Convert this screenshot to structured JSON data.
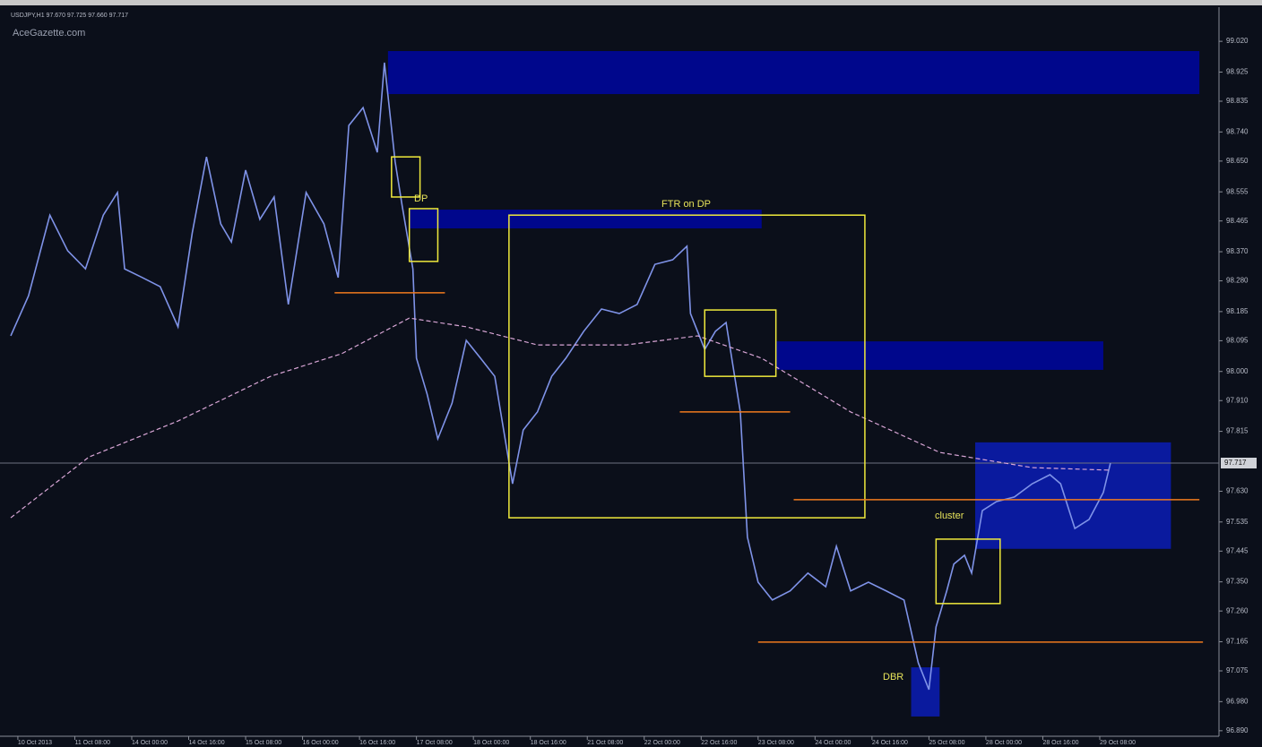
{
  "chart_data": {
    "type": "line",
    "header": "USDJPY,H1 97.670 97.725 97.660 97.717",
    "watermark": "AceGazette.com",
    "ylim": [
      96.873,
      99.12
    ],
    "yticks": [
      {
        "value": 99.02,
        "label": "99.020"
      },
      {
        "value": 98.925,
        "label": "98.925"
      },
      {
        "value": 98.835,
        "label": "98.835"
      },
      {
        "value": 98.74,
        "label": "98.740"
      },
      {
        "value": 98.65,
        "label": "98.650"
      },
      {
        "value": 98.555,
        "label": "98.555"
      },
      {
        "value": 98.465,
        "label": "98.465"
      },
      {
        "value": 98.37,
        "label": "98.370"
      },
      {
        "value": 98.28,
        "label": "98.280"
      },
      {
        "value": 98.185,
        "label": "98.185"
      },
      {
        "value": 98.095,
        "label": "98.095"
      },
      {
        "value": 98.0,
        "label": "98.000"
      },
      {
        "value": 97.91,
        "label": "97.910"
      },
      {
        "value": 97.815,
        "label": "97.815"
      },
      {
        "value": 97.63,
        "label": "97.630"
      },
      {
        "value": 97.535,
        "label": "97.535"
      },
      {
        "value": 97.445,
        "label": "97.445"
      },
      {
        "value": 97.35,
        "label": "97.350"
      },
      {
        "value": 97.26,
        "label": "97.260"
      },
      {
        "value": 97.165,
        "label": "97.165"
      },
      {
        "value": 97.075,
        "label": "97.075"
      },
      {
        "value": 96.98,
        "label": "96.980"
      },
      {
        "value": 96.89,
        "label": "96.890"
      }
    ],
    "xlim": [
      -2.5,
      337.5
    ],
    "xticks": [
      {
        "value": 0,
        "label": "10 Oct 2013"
      },
      {
        "value": 16,
        "label": "11 Oct 08:00"
      },
      {
        "value": 32,
        "label": "14 Oct 00:00"
      },
      {
        "value": 48,
        "label": "14 Oct 16:00"
      },
      {
        "value": 64,
        "label": "15 Oct 08:00"
      },
      {
        "value": 80,
        "label": "16 Oct 00:00"
      },
      {
        "value": 96,
        "label": "16 Oct 16:00"
      },
      {
        "value": 112,
        "label": "17 Oct 08:00"
      },
      {
        "value": 128,
        "label": "18 Oct 00:00"
      },
      {
        "value": 144,
        "label": "18 Oct 16:00"
      },
      {
        "value": 160,
        "label": "21 Oct 08:00"
      },
      {
        "value": 176,
        "label": "22 Oct 00:00"
      },
      {
        "value": 192,
        "label": "22 Oct 16:00"
      },
      {
        "value": 208,
        "label": "23 Oct 08:00"
      },
      {
        "value": 224,
        "label": "24 Oct 00:00"
      },
      {
        "value": 240,
        "label": "24 Oct 16:00"
      },
      {
        "value": 256,
        "label": "25 Oct 08:00"
      },
      {
        "value": 272,
        "label": "28 Oct 00:00"
      },
      {
        "value": 288,
        "label": "28 Oct 16:00"
      },
      {
        "value": 304,
        "label": "29 Oct 08:00"
      }
    ],
    "series": [
      {
        "color": "#7f93e8",
        "x": [
          -2,
          3,
          9,
          14,
          19,
          24,
          28,
          30,
          35,
          40,
          45,
          49,
          53,
          57,
          60,
          64,
          68,
          72,
          76,
          81,
          86,
          90,
          93,
          97,
          101,
          103,
          106,
          108,
          111,
          112,
          115,
          118,
          122,
          126,
          130,
          134,
          139,
          142,
          146,
          150,
          154,
          159,
          164,
          169,
          174,
          179,
          184,
          188,
          189,
          193,
          196,
          199,
          201,
          203,
          205,
          208,
          212,
          217,
          222,
          227,
          230,
          234,
          239,
          244,
          249,
          253,
          256,
          258,
          261,
          263,
          266,
          268,
          271,
          275,
          280,
          285,
          290,
          293,
          297,
          301,
          305,
          307
        ],
        "values": [
          98.11,
          98.234,
          98.483,
          98.373,
          98.317,
          98.483,
          98.553,
          98.317,
          98.29,
          98.262,
          98.138,
          98.428,
          98.663,
          98.456,
          98.4,
          98.622,
          98.47,
          98.539,
          98.207,
          98.553,
          98.456,
          98.29,
          98.76,
          98.815,
          98.677,
          98.954,
          98.649,
          98.511,
          98.317,
          98.041,
          97.93,
          97.792,
          97.902,
          98.096,
          98.041,
          97.985,
          97.653,
          97.819,
          97.875,
          97.985,
          98.041,
          98.124,
          98.193,
          98.179,
          98.207,
          98.331,
          98.345,
          98.387,
          98.179,
          98.068,
          98.124,
          98.151,
          98.013,
          97.875,
          97.488,
          97.349,
          97.294,
          97.322,
          97.377,
          97.335,
          97.46,
          97.322,
          97.349,
          97.322,
          97.294,
          97.1,
          97.017,
          97.211,
          97.322,
          97.405,
          97.432,
          97.377,
          97.57,
          97.598,
          97.612,
          97.653,
          97.681,
          97.653,
          97.515,
          97.543,
          97.626,
          97.717
        ]
      },
      {
        "color": "#d9a6d6",
        "dashed": true,
        "x": [
          -2,
          20,
          45,
          71,
          91,
          110,
          126,
          146,
          171,
          191,
          209,
          234,
          259,
          285,
          307
        ],
        "values": [
          97.548,
          97.736,
          97.847,
          97.985,
          98.055,
          98.165,
          98.138,
          98.082,
          98.082,
          98.11,
          98.041,
          97.875,
          97.75,
          97.703,
          97.695
        ]
      }
    ],
    "current_price": 97.717,
    "zones": [
      {
        "x": [
          104,
          332
        ],
        "y": [
          98.857,
          98.99
        ],
        "color": "#00078c"
      },
      {
        "x": [
          110,
          209
        ],
        "y": [
          98.442,
          98.5
        ],
        "color": "#00078c"
      },
      {
        "x": [
          213,
          305
        ],
        "y": [
          98.005,
          98.093
        ],
        "color": "#00078c"
      },
      {
        "x": [
          269,
          324
        ],
        "y": [
          97.452,
          97.781
        ],
        "color": "#0a1a9e"
      },
      {
        "x": [
          251,
          259
        ],
        "y": [
          96.934,
          97.086
        ],
        "color": "#0a1a9e"
      }
    ],
    "boxes": [
      {
        "x": [
          105,
          113
        ],
        "y": [
          98.539,
          98.663
        ],
        "color": "#f0ea3c"
      },
      {
        "x": [
          110,
          118
        ],
        "y": [
          98.34,
          98.503
        ],
        "color": "#f0ea3c"
      },
      {
        "x": [
          138,
          238
        ],
        "y": [
          97.548,
          98.483
        ],
        "color": "#f0ea3c"
      },
      {
        "x": [
          193,
          213
        ],
        "y": [
          97.985,
          98.19
        ],
        "color": "#f0ea3c"
      },
      {
        "x": [
          258,
          276
        ],
        "y": [
          97.283,
          97.482
        ],
        "color": "#f0ea3c"
      }
    ],
    "levels": [
      {
        "x": [
          89,
          120
        ],
        "y": 98.243,
        "color": "#f07a1e"
      },
      {
        "x": [
          186,
          217
        ],
        "y": 97.875,
        "color": "#f07a1e"
      },
      {
        "x": [
          218,
          332
        ],
        "y": 97.604,
        "color": "#f07a1e"
      },
      {
        "x": [
          208,
          333
        ],
        "y": 97.164,
        "color": "#f07a1e"
      }
    ],
    "annotations": [
      "DP",
      "FTR on DP",
      "cluster",
      "DBR"
    ]
  }
}
